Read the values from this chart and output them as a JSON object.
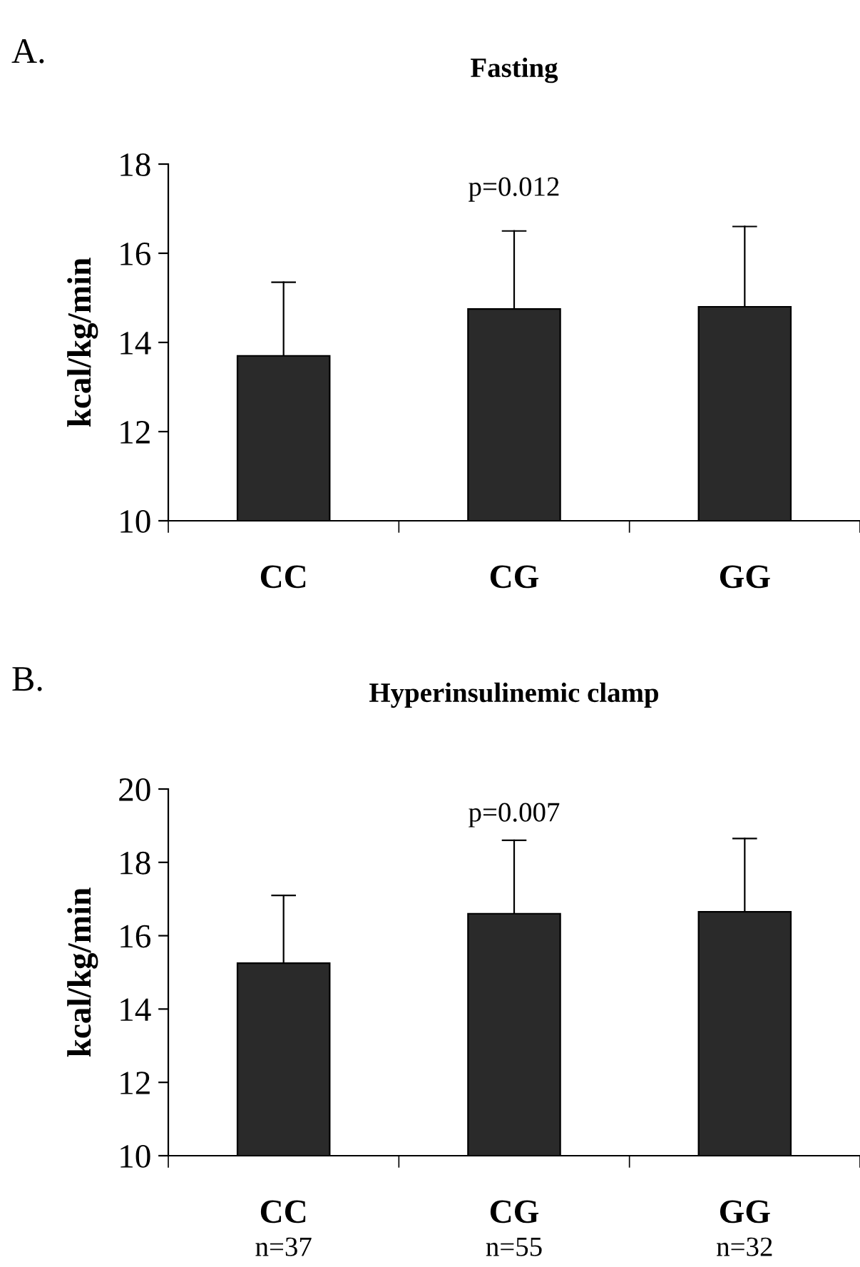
{
  "chart_data": [
    {
      "type": "bar",
      "title": "Fasting",
      "ylabel": "kcal/kg/min",
      "categories": [
        "CC",
        "CG",
        "GG"
      ],
      "series": [
        {
          "color": "#2a2a2a",
          "values": [
            13.7,
            14.75,
            14.8
          ],
          "errors": [
            [
              13.7,
              15.35
            ],
            [
              14.75,
              16.5
            ],
            [
              14.8,
              16.6
            ]
          ]
        }
      ],
      "ylim": [
        10,
        18
      ],
      "yticks": [
        10,
        12,
        14,
        16,
        18
      ],
      "grid": false,
      "legend": false,
      "annotations": [
        "A.",
        "p=0.012"
      ]
    },
    {
      "type": "bar",
      "title": "Hyperinsulinemic clamp",
      "ylabel": "kcal/kg/min",
      "categories": [
        "CC",
        "CG",
        "GG"
      ],
      "series": [
        {
          "color": "#2a2a2a",
          "values": [
            15.25,
            16.6,
            16.65
          ],
          "errors": [
            [
              15.25,
              17.1
            ],
            [
              16.6,
              18.6
            ],
            [
              16.65,
              18.65
            ]
          ]
        }
      ],
      "ylim": [
        10,
        20
      ],
      "yticks": [
        10,
        12,
        14,
        16,
        18,
        20
      ],
      "grid": false,
      "legend": false,
      "annotations": [
        "B.",
        "p=0.007",
        "n=37",
        "n=55",
        "n=32"
      ]
    }
  ]
}
